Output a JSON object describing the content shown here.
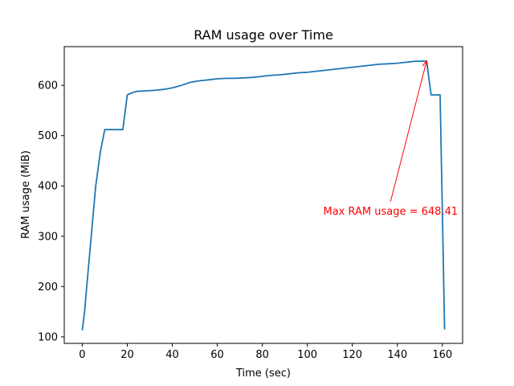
{
  "chart_data": {
    "type": "line",
    "title": "RAM usage over Time",
    "xlabel": "Time (sec)",
    "ylabel": "RAM usage (MiB)",
    "xlim": [
      -8,
      169
    ],
    "ylim": [
      87,
      677
    ],
    "xticks": [
      0,
      20,
      40,
      60,
      80,
      100,
      120,
      140,
      160
    ],
    "yticks": [
      100,
      200,
      300,
      400,
      500,
      600
    ],
    "grid": false,
    "line_color": "#1f77b4",
    "series": [
      {
        "x": [
          0,
          1,
          2,
          4,
          6,
          8,
          10,
          12,
          14,
          16,
          18,
          20,
          22,
          24,
          28,
          32,
          36,
          40,
          44,
          48,
          52,
          56,
          60,
          64,
          68,
          72,
          76,
          80,
          84,
          88,
          92,
          96,
          100,
          104,
          108,
          112,
          116,
          120,
          124,
          128,
          132,
          136,
          140,
          144,
          148,
          150,
          152,
          153,
          155,
          157,
          159,
          161
        ],
        "y": [
          113,
          148,
          200,
          300,
          400,
          466,
          512,
          512,
          512,
          512,
          512,
          581,
          585,
          588,
          589,
          590,
          592,
          595,
          600,
          606,
          609,
          611,
          613,
          614,
          614,
          615,
          616,
          618,
          620,
          621,
          623,
          625,
          626,
          628,
          630,
          632,
          634,
          636,
          638,
          640,
          642,
          643,
          644,
          646,
          648,
          648,
          648.41,
          648,
          581,
          581,
          581,
          115
        ]
      }
    ],
    "annotations": [
      {
        "text": "Max RAM usage = 648.41",
        "color": "#ff0000",
        "xy": [
          153,
          648.41
        ],
        "xytext": [
          137,
          350
        ]
      }
    ]
  }
}
